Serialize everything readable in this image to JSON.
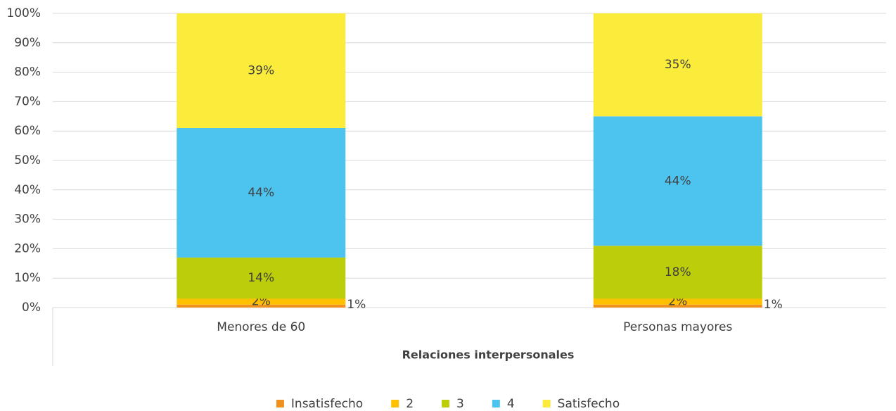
{
  "chart_data": {
    "type": "bar",
    "stacked": true,
    "x_axis_label": "Relaciones interpersonales",
    "categories": [
      "Menores de 60",
      "Personas mayores"
    ],
    "series": [
      {
        "name": "Insatisfecho",
        "color": "#f0901e",
        "values": [
          1,
          1
        ],
        "value_labels": [
          "1%",
          "1%"
        ]
      },
      {
        "name": "2",
        "color": "#ffc000",
        "values": [
          2,
          2
        ],
        "value_labels": [
          "2%",
          "2%"
        ]
      },
      {
        "name": "3",
        "color": "#bccd0a",
        "values": [
          14,
          18
        ],
        "value_labels": [
          "14%",
          "18%"
        ]
      },
      {
        "name": "4",
        "color": "#4dc3f0",
        "values": [
          44,
          44
        ],
        "value_labels": [
          "44%",
          "44%"
        ]
      },
      {
        "name": "Satisfecho",
        "color": "#fbec3c",
        "values": [
          39,
          35
        ],
        "value_labels": [
          "39%",
          "35%"
        ]
      }
    ],
    "ylim": [
      0,
      100
    ],
    "yticks": [
      {
        "value": 0,
        "label": "0%"
      },
      {
        "value": 10,
        "label": "10%"
      },
      {
        "value": 20,
        "label": "20%"
      },
      {
        "value": 30,
        "label": "30%"
      },
      {
        "value": 40,
        "label": "40%"
      },
      {
        "value": 50,
        "label": "50%"
      },
      {
        "value": 60,
        "label": "60%"
      },
      {
        "value": 70,
        "label": "70%"
      },
      {
        "value": 80,
        "label": "80%"
      },
      {
        "value": 90,
        "label": "90%"
      },
      {
        "value": 100,
        "label": "100%"
      }
    ],
    "grid": true,
    "legend": "bottom"
  }
}
